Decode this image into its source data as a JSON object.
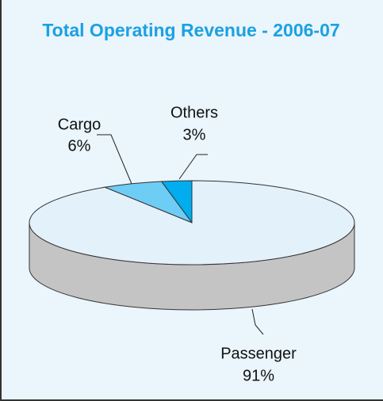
{
  "chart_data": {
    "type": "pie3d",
    "title": "Total Operating Revenue - 2006-07",
    "categories": [
      "Passenger",
      "Cargo",
      "Others"
    ],
    "values": [
      91,
      6,
      3
    ],
    "value_labels": [
      "91%",
      "6%",
      "3%"
    ],
    "colors": [
      "#e3f1fb",
      "#6dcdf5",
      "#00adef"
    ],
    "side_color": "#c4c4c4"
  }
}
